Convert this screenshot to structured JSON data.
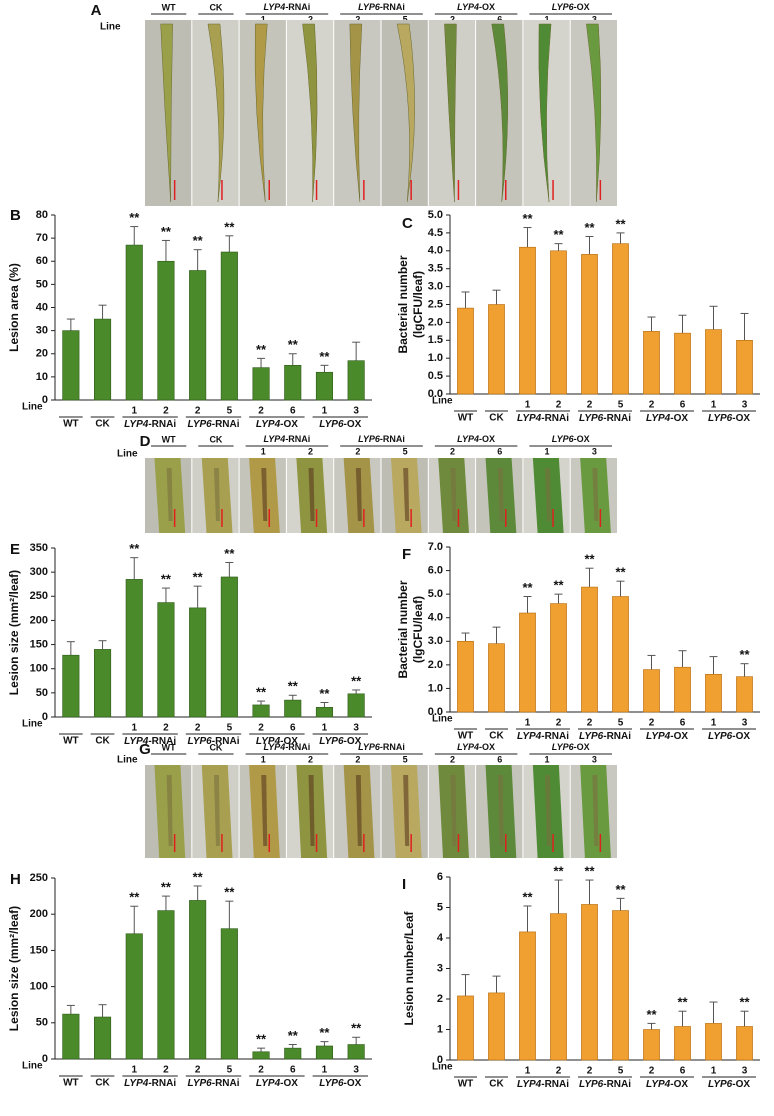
{
  "photo_panels": [
    {
      "label": "A",
      "line_label": "Line",
      "groups": [
        {
          "name": "WT",
          "lines": [
            null
          ]
        },
        {
          "name": "CK",
          "lines": [
            null
          ]
        },
        {
          "name": "LYP4-RNAi",
          "lines": [
            "1",
            "2"
          ]
        },
        {
          "name": "LYP6-RNAi",
          "lines": [
            "2",
            "5"
          ]
        },
        {
          "name": "LYP4-OX",
          "lines": [
            "2",
            "6"
          ]
        },
        {
          "name": "LYP6-OX",
          "lines": [
            "1",
            "3"
          ]
        }
      ]
    },
    {
      "label": "D",
      "line_label": "Line",
      "groups": [
        {
          "name": "WT",
          "lines": [
            null
          ]
        },
        {
          "name": "CK",
          "lines": [
            null
          ]
        },
        {
          "name": "LYP4-RNAi",
          "lines": [
            "1",
            "2"
          ]
        },
        {
          "name": "LYP6-RNAi",
          "lines": [
            "2",
            "5"
          ]
        },
        {
          "name": "LYP4-OX",
          "lines": [
            "2",
            "6"
          ]
        },
        {
          "name": "LYP6-OX",
          "lines": [
            "1",
            "3"
          ]
        }
      ]
    },
    {
      "label": "G",
      "line_label": "Line",
      "groups": [
        {
          "name": "WT",
          "lines": [
            null
          ]
        },
        {
          "name": "CK",
          "lines": [
            null
          ]
        },
        {
          "name": "LYP4-RNAi",
          "lines": [
            "1",
            "2"
          ]
        },
        {
          "name": "LYP6-RNAi",
          "lines": [
            "2",
            "5"
          ]
        },
        {
          "name": "LYP4-OX",
          "lines": [
            "2",
            "6"
          ]
        },
        {
          "name": "LYP6-OX",
          "lines": [
            "1",
            "3"
          ]
        }
      ]
    }
  ],
  "chart_data": [
    {
      "type": "bar",
      "label": "B",
      "ylabel": "Lesion area (%)",
      "xlabel": "Line",
      "color": "#4a8a2a",
      "groups": [
        {
          "name": "WT",
          "categories": [
            null
          ]
        },
        {
          "name": "CK",
          "categories": [
            null
          ]
        },
        {
          "name": "LYP4-RNAi",
          "categories": [
            "1",
            "2"
          ]
        },
        {
          "name": "LYP6-RNAi",
          "categories": [
            "2",
            "5"
          ]
        },
        {
          "name": "LYP4-OX",
          "categories": [
            "2",
            "6"
          ]
        },
        {
          "name": "LYP6-OX",
          "categories": [
            "1",
            "3"
          ]
        }
      ],
      "values": [
        30,
        35,
        67,
        60,
        56,
        64,
        14,
        15,
        12,
        17
      ],
      "errors": [
        5,
        6,
        8,
        9,
        9,
        7,
        4,
        5,
        3,
        8
      ],
      "significance": [
        null,
        null,
        "**",
        "**",
        "**",
        "**",
        "**",
        "**",
        "**",
        null
      ],
      "ylim": [
        0,
        80
      ],
      "yticks": [
        0,
        10,
        20,
        30,
        40,
        50,
        60,
        70,
        80
      ]
    },
    {
      "type": "bar",
      "label": "C",
      "ylabel": [
        "Bacterial number",
        "(lgCFU/leaf)"
      ],
      "xlabel": "Line",
      "color": "#f0a030",
      "groups": [
        {
          "name": "WT",
          "categories": [
            null
          ]
        },
        {
          "name": "CK",
          "categories": [
            null
          ]
        },
        {
          "name": "LYP4-RNAi",
          "categories": [
            "1",
            "2"
          ]
        },
        {
          "name": "LYP6-RNAi",
          "categories": [
            "2",
            "5"
          ]
        },
        {
          "name": "LYP4-OX",
          "categories": [
            "2",
            "6"
          ]
        },
        {
          "name": "LYP6-OX",
          "categories": [
            "1",
            "3"
          ]
        }
      ],
      "values": [
        2.4,
        2.5,
        4.1,
        4.0,
        3.9,
        4.2,
        1.75,
        1.7,
        1.8,
        1.5
      ],
      "errors": [
        0.45,
        0.4,
        0.55,
        0.2,
        0.5,
        0.3,
        0.4,
        0.5,
        0.65,
        0.75
      ],
      "significance": [
        null,
        null,
        "**",
        "**",
        "**",
        "**",
        null,
        null,
        null,
        null
      ],
      "ylim": [
        0,
        5
      ],
      "yticks": [
        {
          "value": 0,
          "label": "0.0"
        },
        {
          "value": 0.5,
          "label": "0.5"
        },
        {
          "value": 1,
          "label": "1.0"
        },
        {
          "value": 1.5,
          "label": "1.5"
        },
        {
          "value": 2,
          "label": "2.0"
        },
        {
          "value": 2.5,
          "label": "2.5"
        },
        {
          "value": 3,
          "label": "3.0"
        },
        {
          "value": 3.5,
          "label": "3.5"
        },
        {
          "value": 4,
          "label": "4.0"
        },
        {
          "value": 4.5,
          "label": "4.5"
        },
        {
          "value": 5,
          "label": "5.0"
        }
      ]
    },
    {
      "type": "bar",
      "label": "E",
      "ylabel": "Lesion size (mm²/leaf)",
      "xlabel": "Line",
      "color": "#4a8a2a",
      "groups": [
        {
          "name": "WT",
          "categories": [
            null
          ]
        },
        {
          "name": "CK",
          "categories": [
            null
          ]
        },
        {
          "name": "LYP4-RNAi",
          "categories": [
            "1",
            "2"
          ]
        },
        {
          "name": "LYP6-RNAi",
          "categories": [
            "2",
            "5"
          ]
        },
        {
          "name": "LYP4-OX",
          "categories": [
            "2",
            "6"
          ]
        },
        {
          "name": "LYP6-OX",
          "categories": [
            "1",
            "3"
          ]
        }
      ],
      "values": [
        128,
        140,
        285,
        237,
        226,
        290,
        25,
        35,
        20,
        48
      ],
      "errors": [
        28,
        18,
        45,
        30,
        45,
        30,
        8,
        10,
        10,
        8
      ],
      "significance": [
        null,
        null,
        "**",
        "**",
        "**",
        "**",
        "**",
        "**",
        "**",
        "**"
      ],
      "ylim": [
        0,
        350
      ],
      "yticks": [
        0,
        50,
        100,
        150,
        200,
        250,
        300,
        350
      ]
    },
    {
      "type": "bar",
      "label": "F",
      "ylabel": [
        "Bacterial number",
        "(lgCFU/leaf)"
      ],
      "xlabel": "Line",
      "color": "#f0a030",
      "groups": [
        {
          "name": "WT",
          "categories": [
            null
          ]
        },
        {
          "name": "CK",
          "categories": [
            null
          ]
        },
        {
          "name": "LYP4-RNAi",
          "categories": [
            "1",
            "2"
          ]
        },
        {
          "name": "LYP6-RNAi",
          "categories": [
            "2",
            "5"
          ]
        },
        {
          "name": "LYP4-OX",
          "categories": [
            "2",
            "6"
          ]
        },
        {
          "name": "LYP6-OX",
          "categories": [
            "1",
            "3"
          ]
        }
      ],
      "values": [
        3.0,
        2.9,
        4.2,
        4.6,
        5.3,
        4.9,
        1.8,
        1.9,
        1.6,
        1.5
      ],
      "errors": [
        0.35,
        0.7,
        0.7,
        0.4,
        0.8,
        0.65,
        0.6,
        0.7,
        0.75,
        0.55
      ],
      "significance": [
        null,
        null,
        "**",
        "**",
        "**",
        "**",
        null,
        null,
        null,
        "**"
      ],
      "ylim": [
        0,
        7
      ],
      "yticks": [
        {
          "value": 0,
          "label": "0.0"
        },
        {
          "value": 1,
          "label": "1.0"
        },
        {
          "value": 2,
          "label": "2.0"
        },
        {
          "value": 3,
          "label": "3.0"
        },
        {
          "value": 4,
          "label": "4.0"
        },
        {
          "value": 5,
          "label": "5.0"
        },
        {
          "value": 6,
          "label": "6.0"
        },
        {
          "value": 7,
          "label": "7.0"
        }
      ]
    },
    {
      "type": "bar",
      "label": "H",
      "ylabel": "Lesion size (mm²/leaf)",
      "xlabel": "Line",
      "color": "#4a8a2a",
      "groups": [
        {
          "name": "WT",
          "categories": [
            null
          ]
        },
        {
          "name": "CK",
          "categories": [
            null
          ]
        },
        {
          "name": "LYP4-RNAi",
          "categories": [
            "1",
            "2"
          ]
        },
        {
          "name": "LYP6-RNAi",
          "categories": [
            "2",
            "5"
          ]
        },
        {
          "name": "LYP4-OX",
          "categories": [
            "2",
            "6"
          ]
        },
        {
          "name": "LYP6-OX",
          "categories": [
            "1",
            "3"
          ]
        }
      ],
      "values": [
        62,
        58,
        173,
        205,
        219,
        180,
        10,
        15,
        18,
        20
      ],
      "errors": [
        12,
        17,
        38,
        20,
        20,
        38,
        5,
        5,
        6,
        10
      ],
      "significance": [
        null,
        null,
        "**",
        "**",
        "**",
        "**",
        "**",
        "**",
        "**",
        "**"
      ],
      "ylim": [
        0,
        250
      ],
      "yticks": [
        0,
        50,
        100,
        150,
        200,
        250
      ]
    },
    {
      "type": "bar",
      "label": "I",
      "ylabel": "Lesion number/Leaf",
      "xlabel": "Line",
      "color": "#f0a030",
      "groups": [
        {
          "name": "WT",
          "categories": [
            null
          ]
        },
        {
          "name": "CK",
          "categories": [
            null
          ]
        },
        {
          "name": "LYP4-RNAi",
          "categories": [
            "1",
            "2"
          ]
        },
        {
          "name": "LYP6-RNAi",
          "categories": [
            "2",
            "5"
          ]
        },
        {
          "name": "LYP4-OX",
          "categories": [
            "2",
            "6"
          ]
        },
        {
          "name": "LYP6-OX",
          "categories": [
            "1",
            "3"
          ]
        }
      ],
      "values": [
        2.1,
        2.2,
        4.2,
        4.8,
        5.1,
        4.9,
        1.0,
        1.1,
        1.2,
        1.1
      ],
      "errors": [
        0.7,
        0.55,
        0.85,
        1.1,
        0.8,
        0.4,
        0.2,
        0.5,
        0.7,
        0.5
      ],
      "significance": [
        null,
        null,
        "**",
        "**",
        "**",
        "**",
        "**",
        "**",
        null,
        "**"
      ],
      "ylim": [
        0,
        6
      ],
      "yticks": [
        0,
        1,
        2,
        3,
        4,
        5,
        6
      ]
    }
  ]
}
